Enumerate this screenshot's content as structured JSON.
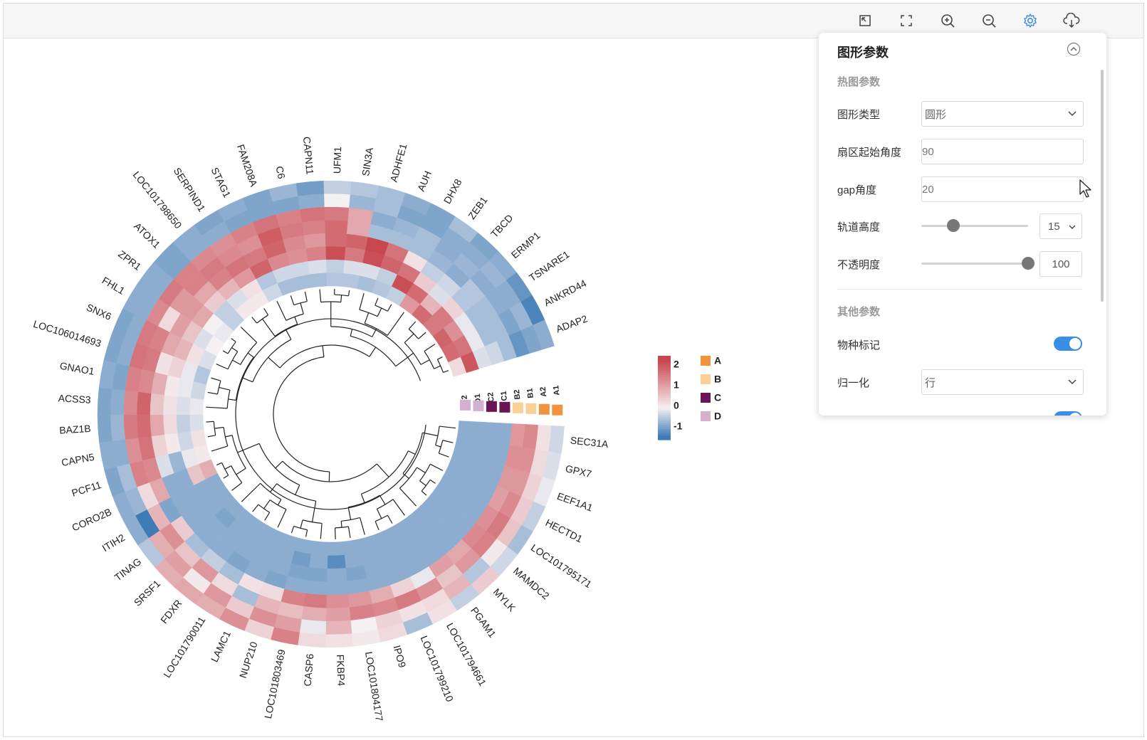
{
  "toolbar": {
    "tools": [
      {
        "name": "restore-icon",
        "tooltip": ""
      },
      {
        "name": "fullscreen-icon",
        "tooltip": ""
      },
      {
        "name": "zoom-in-icon",
        "tooltip": ""
      },
      {
        "name": "zoom-out-icon",
        "tooltip": ""
      },
      {
        "name": "settings-icon",
        "tooltip": "",
        "active": true
      },
      {
        "name": "download-icon",
        "tooltip": ""
      }
    ],
    "active_color": "#3a8ee6"
  },
  "panel": {
    "title": "图形参数",
    "heatmap_section": "热图参数",
    "shape_type_label": "图形类型",
    "shape_type_value": "圆形",
    "start_angle_label": "扇区起始角度",
    "start_angle_value": "90",
    "gap_label": "gap角度",
    "gap_value": "20",
    "track_height_label": "轨道高度",
    "track_height_value": "15",
    "opacity_label": "不透明度",
    "opacity_value": "100",
    "track_height_fraction": 0.3,
    "opacity_fraction": 1.0,
    "other_section": "其他参数",
    "species_mark_label": "物种标记",
    "species_mark_on": true,
    "normalize_label": "归一化",
    "normalize_value": "行"
  },
  "chart_data": {
    "type": "heatmap",
    "layout": "circular",
    "start_angle": 90,
    "gap_angle": 20,
    "tracks": [
      "A1",
      "A2",
      "B1",
      "B2",
      "C1",
      "C2",
      "D1",
      "D2"
    ],
    "groups": [
      "A",
      "A",
      "B",
      "B",
      "C",
      "C",
      "D",
      "D"
    ],
    "group_legend": [
      {
        "label": "A",
        "color": "#f0923f"
      },
      {
        "label": "B",
        "color": "#f9d196"
      },
      {
        "label": "C",
        "color": "#6a1655"
      },
      {
        "label": "D",
        "color": "#d4b0d0"
      }
    ],
    "color_scale": {
      "ticks": [
        "2",
        "1",
        "0",
        "-1"
      ],
      "low": "#3f7bb6",
      "mid": "#f5f0f2",
      "high": "#c8474f",
      "range": [
        -1.5,
        2.5
      ]
    },
    "genes": [
      "SEC31A",
      "GPX7",
      "EEF1A1",
      "HECTD1",
      "LOC101795171",
      "MAMDC2",
      "MYLK",
      "PGAM1",
      "LOC101794661",
      "LOC101799210",
      "IPO9",
      "LOC101804177",
      "FKBP4",
      "CASP6",
      "LOC101803469",
      "NUP210",
      "LAMC1",
      "LOC101790011",
      "FDXR",
      "SRSF1",
      "TINAG",
      "ITIH2",
      "CORO2B",
      "PCF11",
      "CAPN5",
      "BAZ1B",
      "ACSS3",
      "GNAO1",
      "LOC106014693",
      "SNX6",
      "FHL1",
      "ZPR1",
      "ATOX1",
      "LOC101798650",
      "SERPIND1",
      "STAG1",
      "FAM208A",
      "C6",
      "CAPN11",
      "UFM1",
      "SIN3A",
      "ADHFE1",
      "AUH",
      "DHX8",
      "ZEB1",
      "TBCD",
      "ERMP1",
      "TSNARE1",
      "ANKRD44",
      "ADAP2"
    ],
    "values": [
      [
        -0.3,
        0.2,
        1.4,
        1.2,
        -0.8,
        -0.8,
        -0.8,
        -0.8
      ],
      [
        -0.2,
        0.3,
        1.3,
        1.3,
        -0.8,
        -0.8,
        -0.8,
        -0.8
      ],
      [
        -0.1,
        0.4,
        1.2,
        1.2,
        -0.8,
        -0.8,
        -0.8,
        -0.8
      ],
      [
        -0.4,
        0.5,
        1.4,
        1.1,
        -0.8,
        -0.8,
        -0.8,
        -0.8
      ],
      [
        -0.6,
        0.6,
        1.6,
        1.3,
        -0.8,
        -0.8,
        -0.8,
        -0.8
      ],
      [
        -0.3,
        0.1,
        1.5,
        1.4,
        -0.8,
        -0.8,
        -0.8,
        -0.8
      ],
      [
        0.5,
        -0.5,
        1.2,
        1.0,
        -0.8,
        -0.8,
        -0.8,
        -0.8
      ],
      [
        -0.4,
        0.8,
        0.6,
        1.1,
        -0.8,
        -0.8,
        -0.8,
        -0.8
      ],
      [
        0.2,
        0.3,
        1.3,
        -0.1,
        -0.8,
        -0.8,
        -0.8,
        -0.8
      ],
      [
        -0.6,
        0.2,
        1.6,
        0.4,
        -0.8,
        -0.8,
        -0.8,
        -0.8
      ],
      [
        0.3,
        0.4,
        1.4,
        0.9,
        -0.8,
        -0.8,
        -0.8,
        -0.8
      ],
      [
        0.1,
        0.0,
        1.5,
        1.2,
        -0.8,
        -0.9,
        -0.8,
        -0.8
      ],
      [
        0.2,
        0.8,
        1.1,
        1.3,
        -0.8,
        -0.8,
        -1.2,
        -0.8
      ],
      [
        0.3,
        -0.1,
        0.9,
        1.6,
        -0.8,
        -0.9,
        -0.8,
        -0.8
      ],
      [
        1.5,
        1.1,
        0.7,
        1.5,
        -0.8,
        -0.9,
        -1.0,
        -0.8
      ],
      [
        0.4,
        1.3,
        0.8,
        0.3,
        -0.9,
        -0.8,
        -0.8,
        -0.8
      ],
      [
        1.3,
        0.5,
        -0.6,
        0.2,
        -0.8,
        -0.8,
        -0.8,
        -0.8
      ],
      [
        0.9,
        1.2,
        0.3,
        -0.6,
        -0.9,
        -0.8,
        -0.8,
        -0.8
      ],
      [
        1.0,
        0.1,
        1.2,
        -0.4,
        -0.8,
        -0.8,
        -0.8,
        -0.8
      ],
      [
        0.9,
        1.1,
        0.6,
        -0.6,
        -0.8,
        -0.8,
        -0.9,
        -0.8
      ],
      [
        -0.5,
        0.9,
        1.3,
        0.5,
        -0.8,
        -0.8,
        -0.8,
        -0.8
      ],
      [
        -0.8,
        -1.4,
        0.8,
        -0.9,
        -0.8,
        -0.8,
        -0.8,
        -0.8
      ],
      [
        -0.8,
        -0.7,
        0.3,
        1.0,
        -0.8,
        -0.8,
        0.6,
        0.9
      ],
      [
        -0.9,
        -0.6,
        1.5,
        1.4,
        -0.2,
        -0.7,
        -0.1,
        0.1
      ],
      [
        -0.8,
        -0.8,
        1.3,
        1.7,
        0.4,
        0.1,
        -0.3,
        0.2
      ],
      [
        -0.9,
        -0.7,
        1.6,
        1.8,
        1.0,
        0.3,
        -0.4,
        -0.2
      ],
      [
        -0.9,
        -0.8,
        1.4,
        1.9,
        0.6,
        0.2,
        -0.2,
        -0.1
      ],
      [
        -0.8,
        -0.9,
        1.5,
        1.4,
        0.9,
        0.1,
        -0.1,
        -0.3
      ],
      [
        -0.9,
        -0.8,
        1.7,
        1.6,
        0.2,
        0.4,
        -0.1,
        -0.5
      ],
      [
        -0.9,
        -0.8,
        1.6,
        1.5,
        1.0,
        0.8,
        0.2,
        -0.2
      ],
      [
        -0.8,
        -0.8,
        1.4,
        0.3,
        1.1,
        0.6,
        -0.2,
        0.0
      ],
      [
        -0.8,
        -0.8,
        1.6,
        1.2,
        1.2,
        1.0,
        0.0,
        -0.1
      ],
      [
        -0.9,
        -0.9,
        1.5,
        1.5,
        1.0,
        0.5,
        -0.4,
        -0.4
      ],
      [
        -0.8,
        -0.8,
        1.4,
        1.6,
        1.5,
        0.8,
        -0.2,
        0.1
      ],
      [
        -0.9,
        -0.8,
        1.3,
        1.4,
        1.7,
        1.2,
        0.2,
        0.1
      ],
      [
        -0.8,
        -0.9,
        1.5,
        1.3,
        1.6,
        1.9,
        -0.5,
        -0.3
      ],
      [
        -0.9,
        -0.9,
        1.7,
        2.0,
        1.9,
        1.4,
        -0.3,
        -0.6
      ],
      [
        -0.7,
        -0.9,
        1.5,
        1.6,
        1.4,
        1.3,
        -0.3,
        -0.6
      ],
      [
        -1.0,
        -0.8,
        1.7,
        1.5,
        1.2,
        1.5,
        -0.2,
        -0.6
      ],
      [
        -0.4,
        0.0,
        1.6,
        1.8,
        1.8,
        2.2,
        -0.4,
        -0.5
      ],
      [
        -0.5,
        -0.7,
        1.0,
        1.0,
        1.9,
        1.6,
        -0.2,
        -0.5
      ],
      [
        -0.6,
        -0.6,
        -0.8,
        -0.6,
        2.4,
        2.2,
        -0.2,
        -0.6
      ],
      [
        -0.8,
        -0.9,
        -0.7,
        -0.6,
        1.7,
        1.9,
        -0.4,
        -0.5
      ],
      [
        -0.9,
        -0.9,
        -0.6,
        -0.6,
        0.2,
        1.7,
        2.2,
        -0.4
      ],
      [
        -0.6,
        -0.8,
        -0.8,
        -0.7,
        -0.4,
        0.5,
        1.8,
        1.2
      ],
      [
        -0.9,
        -0.8,
        -0.7,
        -0.8,
        -0.3,
        -0.2,
        0.8,
        1.8
      ],
      [
        -0.8,
        -0.7,
        -0.8,
        -0.5,
        -0.5,
        0.4,
        1.6,
        1.6
      ],
      [
        -1.1,
        -0.8,
        -0.8,
        -0.6,
        -0.6,
        -0.1,
        1.3,
        1.9
      ],
      [
        -1.3,
        -0.7,
        -0.9,
        -0.6,
        -0.6,
        -0.1,
        1.7,
        1.8
      ],
      [
        -0.8,
        -0.9,
        -1.1,
        -0.6,
        -0.3,
        -0.2,
        2.1,
        0.3
      ]
    ]
  }
}
